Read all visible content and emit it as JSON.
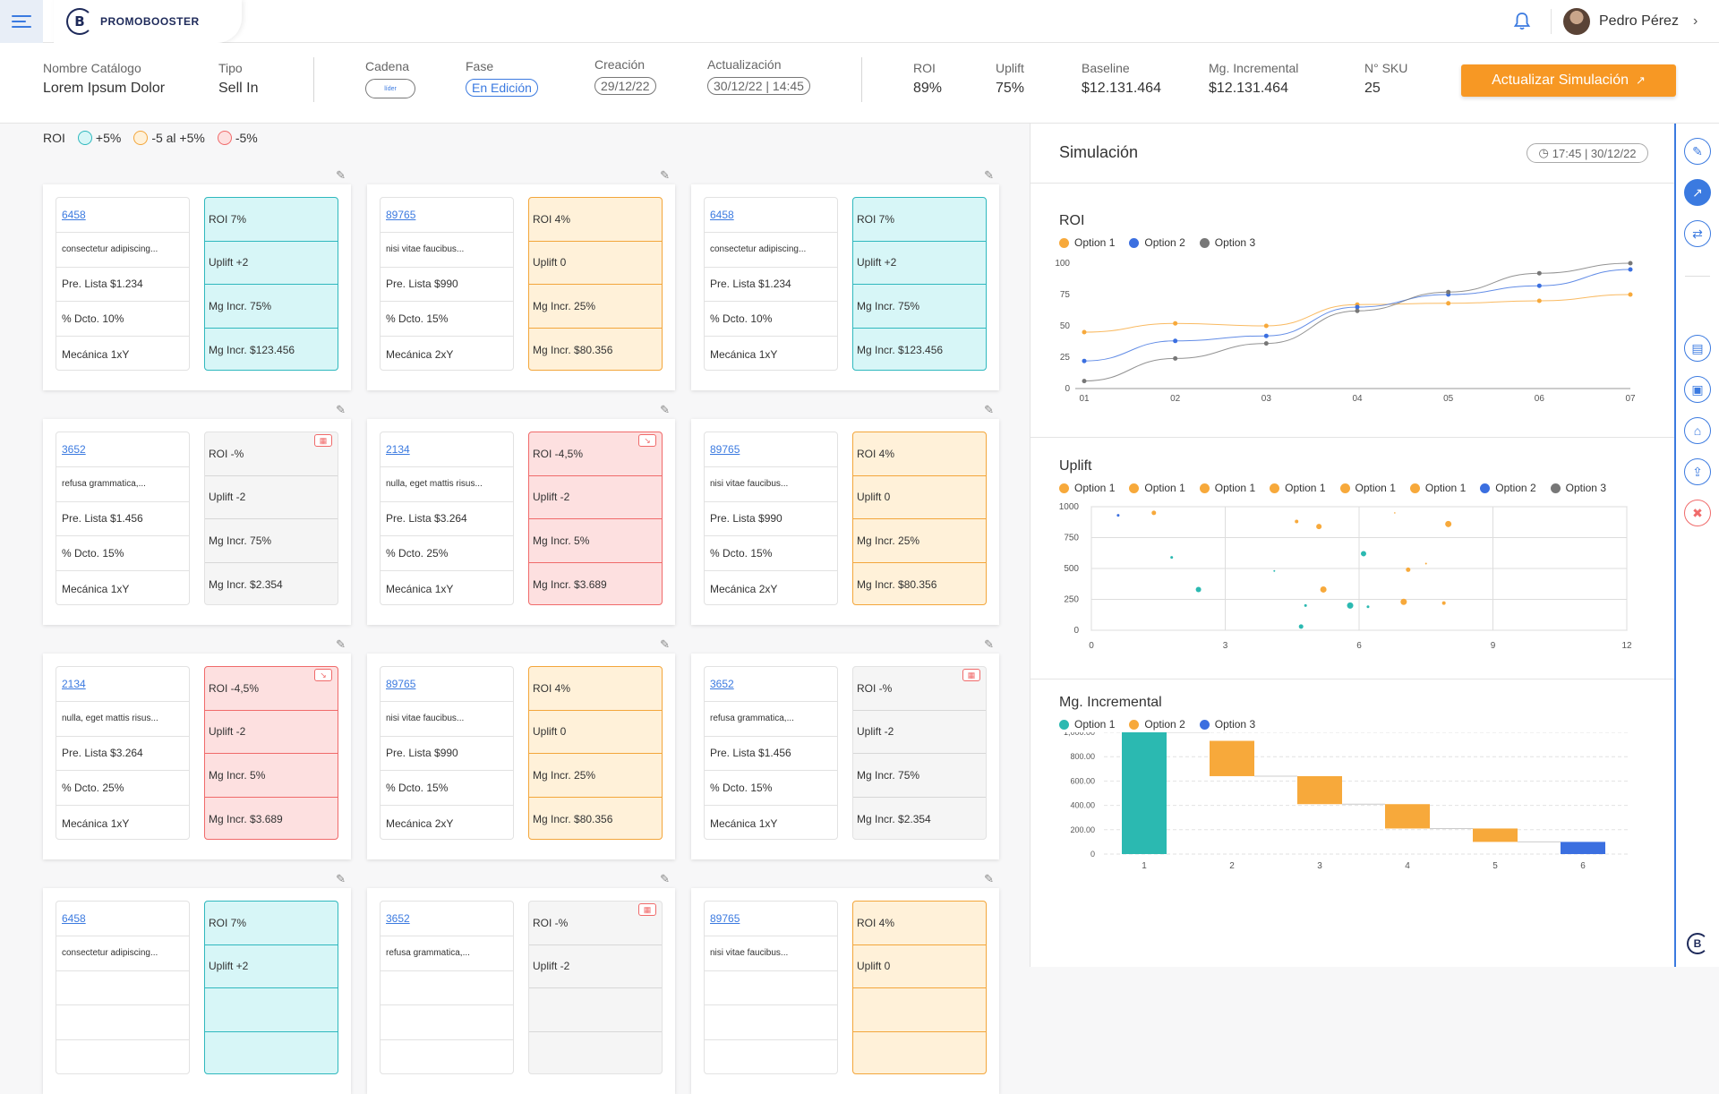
{
  "app": {
    "brand": "PROMOBOOSTER",
    "logo_letter": "B"
  },
  "user": {
    "name": "Pedro Pérez"
  },
  "catalog": {
    "nombre": {
      "label": "Nombre Catálogo",
      "value": "Lorem Ipsum Dolor"
    },
    "tipo": {
      "label": "Tipo",
      "value": "Sell In"
    },
    "cadena": {
      "label": "Cadena",
      "value": "líder"
    },
    "fase": {
      "label": "Fase",
      "value": "En Edición"
    },
    "creacion": {
      "label": "Creación",
      "value": "29/12/22"
    },
    "actualizacion": {
      "label": "Actualización",
      "value": "30/12/22 | 14:45"
    }
  },
  "kpis": {
    "roi": {
      "label": "ROI",
      "value": "89%"
    },
    "uplift": {
      "label": "Uplift",
      "value": "75%"
    },
    "baseline": {
      "label": "Baseline",
      "value": "$12.131.464"
    },
    "mg_incremental": {
      "label": "Mg. Incremental",
      "value": "$12.131.464"
    },
    "sku": {
      "label": "N° SKU",
      "value": "25"
    }
  },
  "update_button": "Actualizar Simulación",
  "roi_legend": {
    "label": "ROI",
    "items": [
      {
        "label": "+5%",
        "color": "#8fe3e6"
      },
      {
        "label": "-5 al +5%",
        "color": "#ffd89a"
      },
      {
        "label": "-5%",
        "color": "#f7b39b"
      }
    ]
  },
  "cards": [
    {
      "code": "6458",
      "desc": "consectetur adipiscing...",
      "pre": "Pre. Lista $1.234",
      "dcto": "% Dcto. 10%",
      "mec": "Mecánica 1xY",
      "roi": "ROI 7%",
      "uplift": "Uplift +2",
      "mg_pct": "Mg Incr. 75%",
      "mg_val": "Mg Incr. $123.456",
      "theme": "cyan"
    },
    {
      "code": "89765",
      "desc": "nisi vitae faucibus...",
      "pre": "Pre. Lista $990",
      "dcto": "% Dcto. 15%",
      "mec": "Mecánica 2xY",
      "roi": "ROI 4%",
      "uplift": "Uplift 0",
      "mg_pct": "Mg Incr. 25%",
      "mg_val": "Mg Incr. $80.356",
      "theme": "orange"
    },
    {
      "code": "6458",
      "desc": "consectetur adipiscing...",
      "pre": "Pre. Lista $1.234",
      "dcto": "% Dcto. 10%",
      "mec": "Mecánica 1xY",
      "roi": "ROI 7%",
      "uplift": "Uplift +2",
      "mg_pct": "Mg Incr. 75%",
      "mg_val": "Mg Incr. $123.456",
      "theme": "cyan"
    },
    {
      "code": "3652",
      "desc": "refusa grammatica,...",
      "pre": "Pre. Lista $1.456",
      "dcto": "% Dcto. 15%",
      "mec": "Mecánica 1xY",
      "roi": "ROI -%",
      "uplift": "Uplift -2",
      "mg_pct": "Mg Incr. 75%",
      "mg_val": "Mg Incr. $2.354",
      "theme": "gray"
    },
    {
      "code": "2134",
      "desc": "nulla, eget mattis risus...",
      "pre": "Pre. Lista $3.264",
      "dcto": "% Dcto. 25%",
      "mec": "Mecánica 1xY",
      "roi": "ROI -4,5%",
      "uplift": "Uplift -2",
      "mg_pct": "Mg Incr. 5%",
      "mg_val": "Mg Incr. $3.689",
      "theme": "red"
    },
    {
      "code": "89765",
      "desc": "nisi vitae faucibus...",
      "pre": "Pre. Lista $990",
      "dcto": "% Dcto. 15%",
      "mec": "Mecánica 2xY",
      "roi": "ROI 4%",
      "uplift": "Uplift 0",
      "mg_pct": "Mg Incr. 25%",
      "mg_val": "Mg Incr. $80.356",
      "theme": "orange"
    },
    {
      "code": "2134",
      "desc": "nulla, eget mattis risus...",
      "pre": "Pre. Lista $3.264",
      "dcto": "% Dcto. 25%",
      "mec": "Mecánica 1xY",
      "roi": "ROI -4,5%",
      "uplift": "Uplift -2",
      "mg_pct": "Mg Incr. 5%",
      "mg_val": "Mg Incr. $3.689",
      "theme": "red"
    },
    {
      "code": "89765",
      "desc": "nisi vitae faucibus...",
      "pre": "Pre. Lista $990",
      "dcto": "% Dcto. 15%",
      "mec": "Mecánica 2xY",
      "roi": "ROI 4%",
      "uplift": "Uplift 0",
      "mg_pct": "Mg Incr. 25%",
      "mg_val": "Mg Incr. $80.356",
      "theme": "orange"
    },
    {
      "code": "3652",
      "desc": "refusa grammatica,...",
      "pre": "Pre. Lista $1.456",
      "dcto": "% Dcto. 15%",
      "mec": "Mecánica 1xY",
      "roi": "ROI -%",
      "uplift": "Uplift -2",
      "mg_pct": "Mg Incr. 75%",
      "mg_val": "Mg Incr. $2.354",
      "theme": "gray"
    },
    {
      "code": "6458",
      "desc": "consectetur adipiscing...",
      "pre": "",
      "dcto": "",
      "mec": "",
      "roi": "ROI 7%",
      "uplift": "Uplift +2",
      "mg_pct": "",
      "mg_val": "",
      "theme": "cyan"
    },
    {
      "code": "3652",
      "desc": "refusa grammatica,...",
      "pre": "",
      "dcto": "",
      "mec": "",
      "roi": "ROI -%",
      "uplift": "Uplift -2",
      "mg_pct": "",
      "mg_val": "",
      "theme": "gray"
    },
    {
      "code": "89765",
      "desc": "nisi vitae faucibus...",
      "pre": "",
      "dcto": "",
      "mec": "",
      "roi": "ROI 4%",
      "uplift": "Uplift 0",
      "mg_pct": "",
      "mg_val": "",
      "theme": "orange"
    }
  ],
  "simulation": {
    "title": "Simulación",
    "time": "17:45 | 30/12/22"
  },
  "chart_data": [
    {
      "type": "line",
      "title": "ROI",
      "x": [
        "01",
        "02",
        "03",
        "04",
        "05",
        "06",
        "07"
      ],
      "ylim": [
        0,
        100
      ],
      "yticks": [
        0,
        25,
        50,
        75,
        100
      ],
      "series": [
        {
          "name": "Option 1",
          "color": "#f7a93b",
          "values": [
            45,
            52,
            50,
            67,
            68,
            70,
            75
          ]
        },
        {
          "name": "Option 2",
          "color": "#3b6fe0",
          "values": [
            22,
            38,
            42,
            65,
            75,
            82,
            95
          ]
        },
        {
          "name": "Option 3",
          "color": "#777777",
          "values": [
            6,
            24,
            36,
            62,
            77,
            92,
            102
          ]
        }
      ]
    },
    {
      "type": "scatter",
      "title": "Uplift",
      "xlim": [
        0,
        12
      ],
      "ylim": [
        0,
        1000
      ],
      "xticks": [
        0,
        3,
        6,
        9,
        12
      ],
      "yticks": [
        0,
        250,
        500,
        750,
        1000
      ],
      "legend": [
        "Option 1",
        "Option 1",
        "Option 1",
        "Option 1",
        "Option 1",
        "Option 1",
        "Option 2",
        "Option 3"
      ],
      "legend_colors": [
        "#f7a93b",
        "#f7a93b",
        "#f7a93b",
        "#f7a93b",
        "#f7a93b",
        "#f7a93b",
        "#3b6fe0",
        "#777777"
      ],
      "points": [
        {
          "x": 0.6,
          "y": 930,
          "r": 1.5,
          "c": "#3b6fe0"
        },
        {
          "x": 1.4,
          "y": 950,
          "r": 2.5,
          "c": "#f7a93b"
        },
        {
          "x": 1.8,
          "y": 590,
          "r": 1.5,
          "c": "#2bb9b1"
        },
        {
          "x": 2.4,
          "y": 330,
          "r": 3,
          "c": "#2bb9b1"
        },
        {
          "x": 4.1,
          "y": 480,
          "r": 1,
          "c": "#2bb9b1"
        },
        {
          "x": 4.6,
          "y": 880,
          "r": 2,
          "c": "#f7a93b"
        },
        {
          "x": 5.1,
          "y": 840,
          "r": 3,
          "c": "#f7a93b"
        },
        {
          "x": 5.2,
          "y": 330,
          "r": 3.5,
          "c": "#f7a93b"
        },
        {
          "x": 4.8,
          "y": 200,
          "r": 1.5,
          "c": "#2bb9b1"
        },
        {
          "x": 4.7,
          "y": 30,
          "r": 2.5,
          "c": "#2bb9b1"
        },
        {
          "x": 5.8,
          "y": 200,
          "r": 3.5,
          "c": "#2bb9b1"
        },
        {
          "x": 6.1,
          "y": 620,
          "r": 3,
          "c": "#2bb9b1"
        },
        {
          "x": 6.2,
          "y": 190,
          "r": 1.5,
          "c": "#2bb9b1"
        },
        {
          "x": 7.0,
          "y": 230,
          "r": 3.5,
          "c": "#f7a93b"
        },
        {
          "x": 7.1,
          "y": 490,
          "r": 2.5,
          "c": "#f7a93b"
        },
        {
          "x": 7.5,
          "y": 540,
          "r": 1,
          "c": "#f7a93b"
        },
        {
          "x": 7.9,
          "y": 220,
          "r": 2,
          "c": "#f7a93b"
        },
        {
          "x": 8.0,
          "y": 860,
          "r": 3.5,
          "c": "#f7a93b"
        },
        {
          "x": 6.8,
          "y": 950,
          "r": 0.8,
          "c": "#f7a93b"
        }
      ]
    },
    {
      "type": "bar",
      "title": "Mg. Incremental",
      "categories": [
        "1",
        "2",
        "3",
        "4",
        "5",
        "6"
      ],
      "ylim": [
        0,
        1000
      ],
      "yticks": [
        "0",
        "200.00",
        "400.00",
        "600.00",
        "800.00",
        "1,000.00"
      ],
      "legend": [
        {
          "name": "Option 1",
          "color": "#2bb9b1"
        },
        {
          "name": "Option 2",
          "color": "#f7a93b"
        },
        {
          "name": "Option 3",
          "color": "#3b6fe0"
        }
      ],
      "bars": [
        {
          "start": 0,
          "end": 1000,
          "color": "#2bb9b1"
        },
        {
          "start": 930,
          "end": 640,
          "color": "#f7a93b"
        },
        {
          "start": 640,
          "end": 410,
          "color": "#f7a93b"
        },
        {
          "start": 410,
          "end": 210,
          "color": "#f7a93b"
        },
        {
          "start": 210,
          "end": 100,
          "color": "#f7a93b"
        },
        {
          "start": 100,
          "end": 0,
          "color": "#3b6fe0"
        }
      ]
    }
  ]
}
